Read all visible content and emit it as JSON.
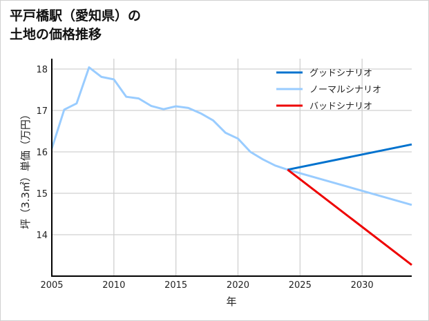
{
  "chart_data": {
    "type": "line",
    "title_line1": "平戸橋駅（愛知県）の",
    "title_line2": "土地の価格推移",
    "xlabel": "年",
    "ylabel": "坪（3.3㎡）単価（万円）",
    "xlim": [
      2005,
      2034
    ],
    "ylim": [
      13.0,
      18.25
    ],
    "xticks": [
      2005,
      2010,
      2015,
      2020,
      2025,
      2030
    ],
    "yticks": [
      14,
      15,
      16,
      17,
      18
    ],
    "grid": true,
    "legend_position": "top-right",
    "series": [
      {
        "name": "グッドシナリオ",
        "color": "#0072CE",
        "x": [
          2024,
          2034
        ],
        "y": [
          15.57,
          16.18
        ]
      },
      {
        "name": "ノーマルシナリオ",
        "color": "#99CCFF",
        "x": [
          2005,
          2006,
          2007,
          2008,
          2009,
          2010,
          2011,
          2012,
          2013,
          2014,
          2015,
          2016,
          2017,
          2018,
          2019,
          2020,
          2021,
          2022,
          2023,
          2024,
          2034
        ],
        "y": [
          16.08,
          17.02,
          17.17,
          18.04,
          17.81,
          17.75,
          17.33,
          17.29,
          17.11,
          17.03,
          17.1,
          17.06,
          16.93,
          16.76,
          16.46,
          16.32,
          16.0,
          15.82,
          15.67,
          15.57,
          14.72
        ]
      },
      {
        "name": "バッドシナリオ",
        "color": "#EE0000",
        "x": [
          2024,
          2034
        ],
        "y": [
          15.57,
          13.27
        ]
      }
    ]
  }
}
